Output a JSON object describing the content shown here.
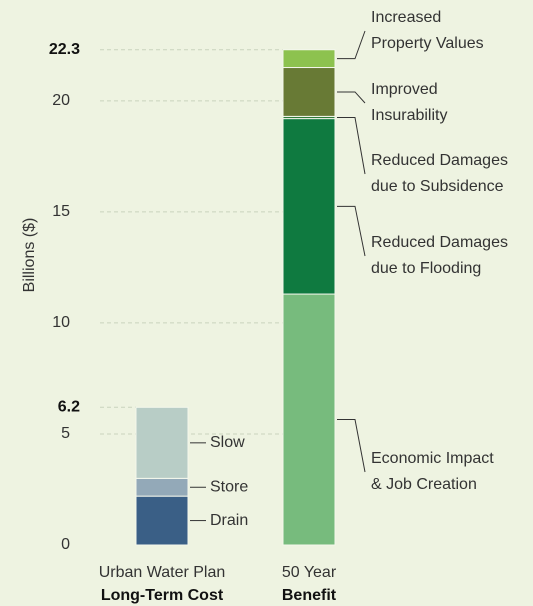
{
  "chart_data": {
    "type": "stacked_bar",
    "y_label": "Billions ($)",
    "ylim": [
      0,
      24
    ],
    "yticks": [
      0,
      5,
      10,
      15,
      20
    ],
    "grid": true,
    "total_labels": [
      6.2,
      22.3
    ],
    "bars": [
      {
        "label": "Urban Water Plan",
        "sublabel": "Long-Term Cost",
        "segments": [
          {
            "name": [
              "Drain"
            ],
            "color": "#3a5f86",
            "value": 2.2
          },
          {
            "name": [
              "Store"
            ],
            "color": "#93a9b8",
            "value": 0.8
          },
          {
            "name": [
              "Slow"
            ],
            "color": "#b8cdc6",
            "value": 3.2
          }
        ]
      },
      {
        "label": "50 Year",
        "sublabel": "Benefit",
        "segments": [
          {
            "name": [
              "Economic Impact",
              "& Job Creation"
            ],
            "color": "#77bb7d",
            "value": 11.3
          },
          {
            "name": [
              "Reduced Damages",
              "due to Flooding"
            ],
            "color": "#0f7a40",
            "value": 7.9
          },
          {
            "name": [
              "Reduced Damages",
              "due to Subsidence"
            ],
            "color": "#2f7a3c",
            "value": 0.1
          },
          {
            "name": [
              "Improved",
              "Insurability"
            ],
            "color": "#687a35",
            "value": 2.2
          },
          {
            "name": [
              "Increased",
              "Property Values"
            ],
            "color": "#8dc24f",
            "value": 0.8
          }
        ]
      }
    ]
  }
}
